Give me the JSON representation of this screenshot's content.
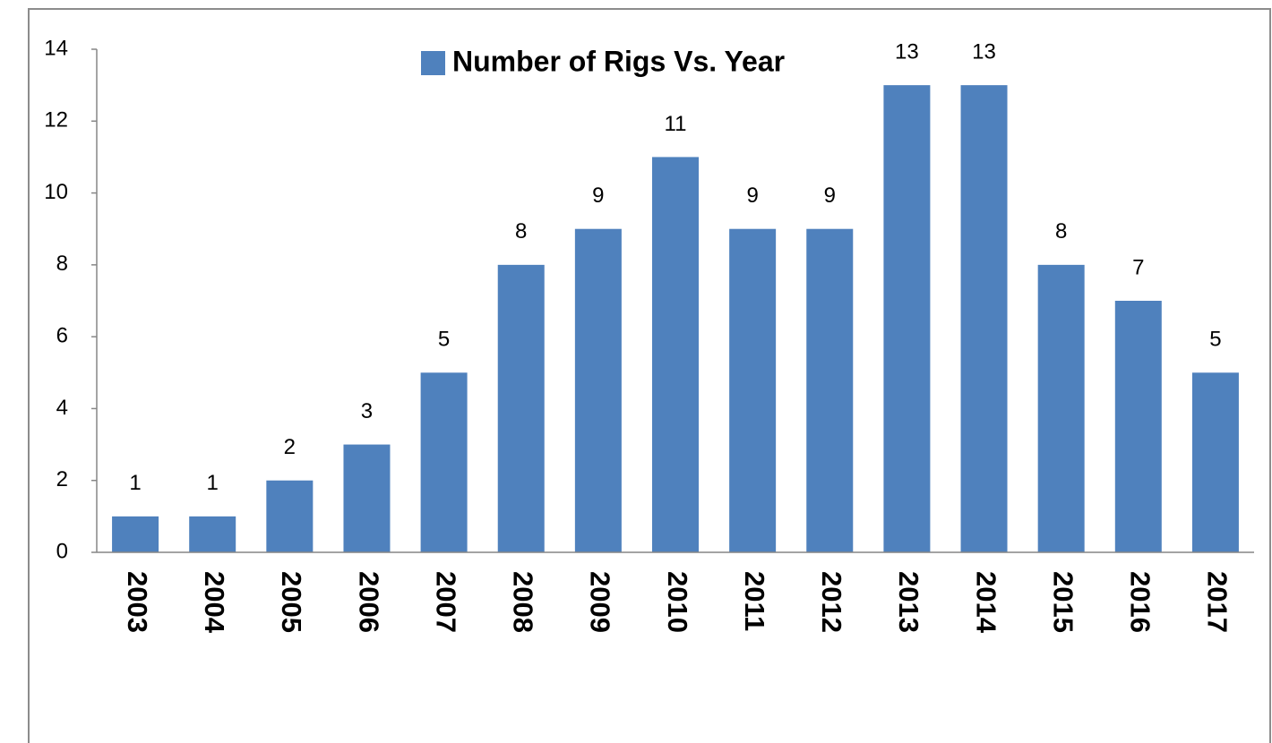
{
  "chart_data": {
    "type": "bar",
    "categories": [
      "2003",
      "2004",
      "2005",
      "2006",
      "2007",
      "2008",
      "2009",
      "2010",
      "2011",
      "2012",
      "2013",
      "2014",
      "2015",
      "2016",
      "2017"
    ],
    "series": [
      {
        "name": "Number of Rigs Vs. Year",
        "color": "#4f81bd",
        "values": [
          1,
          1,
          2,
          3,
          5,
          8,
          9,
          11,
          9,
          9,
          13,
          13,
          8,
          7,
          5
        ]
      }
    ],
    "ylim": [
      0,
      14
    ],
    "yticks": [
      0,
      2,
      4,
      6,
      8,
      10,
      12,
      14
    ],
    "grid": false,
    "data_labels": true,
    "legend": "top"
  }
}
